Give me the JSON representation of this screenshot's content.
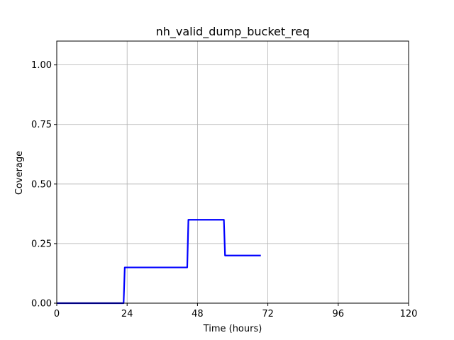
{
  "chart_data": {
    "type": "line",
    "title": "nh_valid_dump_bucket_req",
    "xlabel": "Time (hours)",
    "ylabel": "Coverage",
    "xlim": [
      0,
      120
    ],
    "ylim": [
      0,
      1.1
    ],
    "x_ticks": [
      0,
      24,
      48,
      72,
      96,
      120
    ],
    "x_tick_labels": [
      "0",
      "24",
      "48",
      "72",
      "96",
      "120"
    ],
    "y_ticks": [
      0,
      0.25,
      0.5,
      0.75,
      1.0
    ],
    "y_tick_labels": [
      "0.00",
      "0.25",
      "0.50",
      "0.75",
      "1.00"
    ],
    "grid": true,
    "legend": "none",
    "series": [
      {
        "color": "#0000ff",
        "x": [
          0,
          22.8,
          23.2,
          44.5,
          44.9,
          57.0,
          57.4,
          69.6
        ],
        "y": [
          0,
          0,
          0.15,
          0.15,
          0.35,
          0.35,
          0.2,
          0.2
        ]
      }
    ]
  }
}
